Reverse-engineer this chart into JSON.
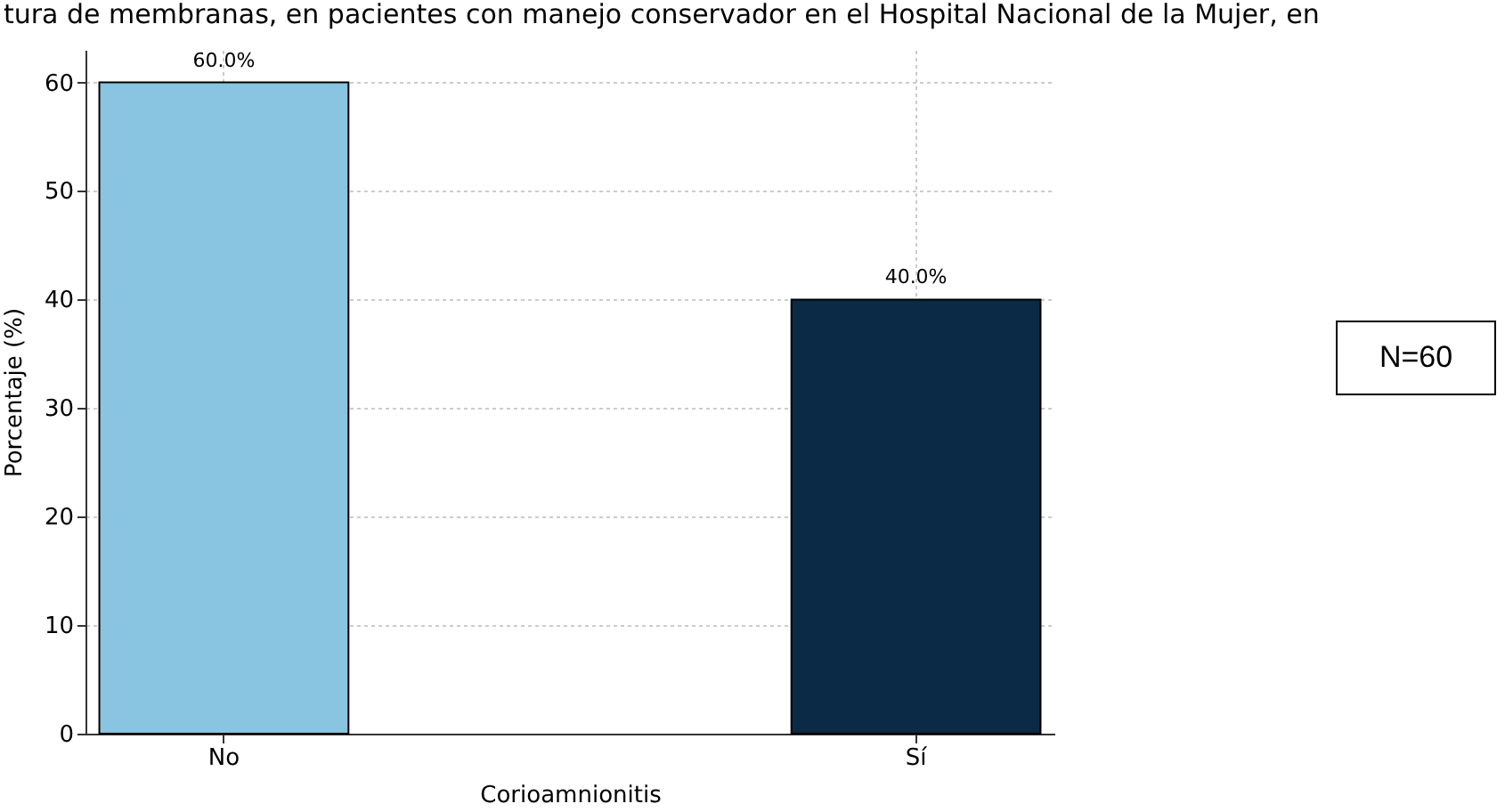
{
  "chart_data": {
    "type": "bar",
    "title": "tura de membranas, en pacientes con manejo conservador en el Hospital Nacional de la Mujer, en",
    "xlabel": "Corioamnionitis",
    "ylabel": "Porcentaje (%)",
    "categories": [
      "No",
      "Sí"
    ],
    "values": [
      60,
      40
    ],
    "colors": [
      "#89c4e1",
      "#0b2a45"
    ],
    "value_labels": [
      "60.0%",
      "40.0%"
    ],
    "ylim": [
      0,
      63
    ],
    "yticks": [
      0,
      10,
      20,
      30,
      40,
      50,
      60
    ],
    "grid": true,
    "annotations": [
      "N=60"
    ]
  }
}
